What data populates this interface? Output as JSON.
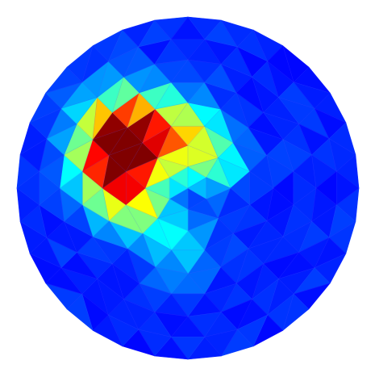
{
  "chart_data": {
    "type": "heatmap",
    "title": "",
    "xlabel": "",
    "ylabel": "",
    "grid": false,
    "legend": "none",
    "colormap": "jet",
    "value_range": [
      0,
      1
    ],
    "domain_shape": "disk",
    "mesh": {
      "rings": 8,
      "rays_at_rim": 32,
      "ring_offset_deg": 0
    },
    "field": {
      "base": 0.16,
      "components": [
        {
          "kind": "gaussian",
          "x": -0.38,
          "y": -0.3,
          "amp": 0.84,
          "sigma": 0.17
        },
        {
          "kind": "gaussian",
          "x": -0.44,
          "y": -0.1,
          "amp": 0.42,
          "sigma": 0.16
        },
        {
          "kind": "gaussian",
          "x": -0.32,
          "y": 0.1,
          "amp": 0.34,
          "sigma": 0.13
        },
        {
          "kind": "gaussian",
          "x": -0.05,
          "y": -0.32,
          "amp": 0.4,
          "sigma": 0.15
        },
        {
          "kind": "gaussian",
          "x": 0.14,
          "y": -0.14,
          "amp": 0.27,
          "sigma": 0.13
        },
        {
          "kind": "gaussian",
          "x": -0.05,
          "y": 0.32,
          "amp": 0.18,
          "sigma": 0.15
        },
        {
          "kind": "gaussian",
          "x": 0.05,
          "y": 0.08,
          "amp": -0.06,
          "sigma": 0.12
        }
      ],
      "noise": 0.03,
      "seed": 17
    },
    "extremes": {
      "max_at": [
        -0.38,
        -0.3
      ],
      "max_value": 1.0,
      "background_value": 0.16
    }
  },
  "colors": {
    "background": "#ffffff",
    "edge": "#5555ff"
  }
}
